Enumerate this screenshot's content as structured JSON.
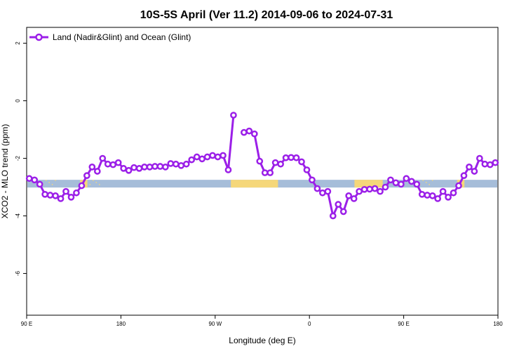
{
  "chart_data": {
    "type": "line",
    "title": "10S-5S April (Ver 11.2)   2014-09-06 to 2024-07-31",
    "xlabel": "Longitude (deg E)",
    "ylabel": "XCO2 - MLO trend (ppm)",
    "x_ticks": [
      {
        "label": "90 E"
      },
      {
        "label": "180"
      },
      {
        "label": "90 W"
      },
      {
        "label": "0"
      },
      {
        "label": "90 E"
      },
      {
        "label": "180"
      }
    ],
    "y_ticks": [
      {
        "value": 2,
        "label": "2"
      },
      {
        "value": 0,
        "label": "0"
      },
      {
        "value": -2,
        "label": "-2"
      },
      {
        "value": -4,
        "label": "-4"
      },
      {
        "value": -6,
        "label": "-6"
      }
    ],
    "xlim": [
      90,
      540
    ],
    "ylim": [
      -7.45,
      2.55
    ],
    "grid": false,
    "legend_position": "top-left",
    "colors": {
      "series": "#9b1fe8",
      "ocean_band": "#a6bdd9",
      "land_band": "#f5d77a"
    },
    "series": [
      {
        "name": "Land (Nadir&Glint) and Ocean (Glint)",
        "x": [
          92.5,
          97.5,
          102.5,
          107.5,
          112.5,
          117.5,
          122.5,
          127.5,
          132.5,
          137.5,
          142.5,
          147.5,
          152.5,
          157.5,
          162.5,
          167.5,
          172.5,
          177.5,
          182.5,
          187.5,
          192.5,
          197.5,
          202.5,
          207.5,
          212.5,
          217.5,
          222.5,
          227.5,
          232.5,
          237.5,
          242.5,
          247.5,
          252.5,
          257.5,
          262.5,
          267.5,
          272.5,
          277.5,
          282.5,
          287.5,
          292.5,
          297.5,
          302.5,
          307.5,
          312.5,
          317.5,
          322.5,
          327.5,
          332.5,
          337.5,
          342.5,
          347.5,
          352.5,
          357.5,
          362.5,
          367.5,
          372.5,
          377.5,
          382.5,
          387.5,
          392.5,
          397.5,
          402.5,
          407.5,
          412.5,
          417.5,
          422.5,
          427.5,
          432.5,
          437.5,
          442.5,
          447.5,
          452.5,
          457.5,
          462.5,
          467.5,
          472.5,
          477.5,
          482.5,
          487.5,
          492.5,
          497.5,
          502.5,
          507.5,
          512.5,
          517.5,
          522.5,
          527.5,
          532.5,
          537.5
        ],
        "y": [
          -2.7,
          -2.75,
          -2.9,
          -3.25,
          -3.28,
          -3.3,
          -3.4,
          -3.15,
          -3.35,
          -3.2,
          -2.95,
          -2.6,
          -2.3,
          -2.45,
          -2.0,
          -2.2,
          -2.22,
          -2.15,
          -2.35,
          -2.42,
          -2.32,
          -2.35,
          -2.3,
          -2.3,
          -2.28,
          -2.28,
          -2.3,
          -2.18,
          -2.2,
          -2.25,
          -2.2,
          -2.05,
          -1.95,
          -2.02,
          -1.95,
          -1.9,
          -1.95,
          -1.9,
          -2.4,
          -0.5,
          null,
          -1.1,
          -1.05,
          -1.15,
          -2.1,
          -2.5,
          -2.5,
          -2.15,
          -2.2,
          -1.98,
          -1.97,
          -1.98,
          -2.12,
          -2.4,
          -2.75,
          -3.05,
          -3.2,
          -3.15,
          -4.0,
          -3.6,
          -3.85,
          -3.3,
          -3.4,
          -3.15,
          -3.08,
          -3.07,
          -3.05,
          -3.15,
          -3.0,
          -2.75,
          -2.85,
          -2.9,
          -2.7,
          -2.8,
          -2.9,
          -3.25,
          -3.28,
          -3.3,
          -3.4,
          -3.15,
          -3.35,
          -3.2,
          -2.95,
          -2.6,
          -2.3,
          -2.45,
          -2.0,
          -2.2,
          -2.22,
          -2.15
        ]
      }
    ],
    "surface_band": {
      "y_center": -2.88,
      "land_segments": [
        [
          141,
          148
        ],
        [
          285,
          330
        ],
        [
          403,
          430
        ],
        [
          141,
          148
        ]
      ]
    }
  }
}
